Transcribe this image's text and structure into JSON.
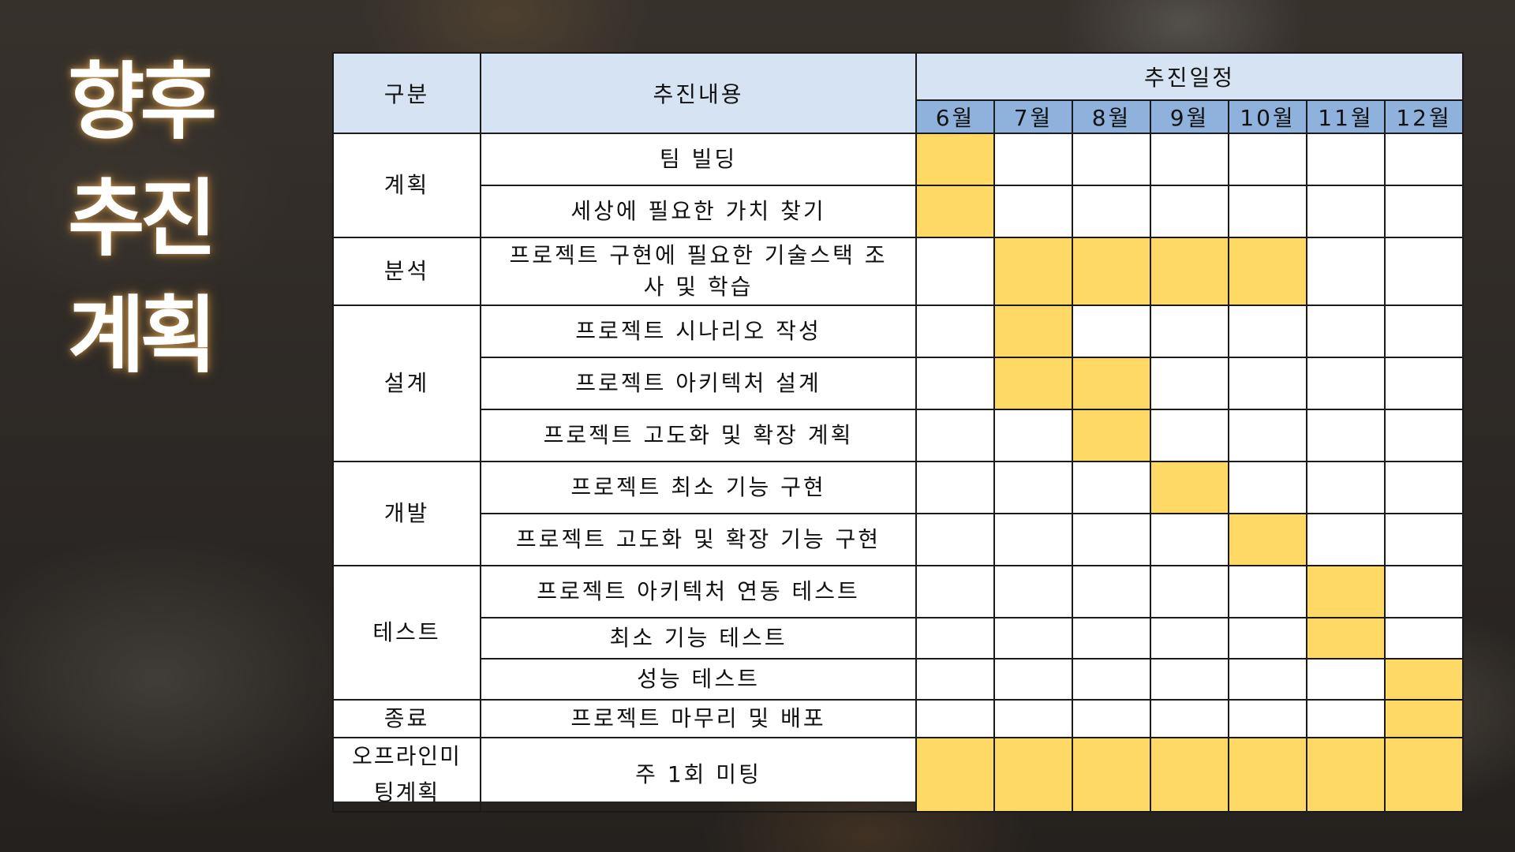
{
  "title": {
    "lines": [
      "향후",
      "추진",
      "계획"
    ]
  },
  "table": {
    "headers": {
      "category": "구분",
      "content": "추진내용",
      "schedule": "추진일정"
    },
    "months": [
      "6월",
      "7월",
      "8월",
      "9월",
      "10월",
      "11월",
      "12월"
    ],
    "groups": [
      {
        "category": "계획",
        "tasks": [
          {
            "text": "팀 빌딩",
            "active": [
              1,
              0,
              0,
              0,
              0,
              0,
              0
            ]
          },
          {
            "text": "세상에 필요한 가치 찾기",
            "active": [
              1,
              0,
              0,
              0,
              0,
              0,
              0
            ]
          }
        ]
      },
      {
        "category": "분석",
        "tasks": [
          {
            "text": "프로젝트 구현에 필요한 기술스택 조사 및 학습",
            "active": [
              0,
              1,
              1,
              1,
              1,
              0,
              0
            ]
          }
        ]
      },
      {
        "category": "설계",
        "tasks": [
          {
            "text": "프로젝트 시나리오 작성",
            "active": [
              0,
              1,
              0,
              0,
              0,
              0,
              0
            ]
          },
          {
            "text": "프로젝트 아키텍처 설계",
            "active": [
              0,
              1,
              1,
              0,
              0,
              0,
              0
            ]
          },
          {
            "text": "프로젝트 고도화 및 확장 계획",
            "active": [
              0,
              0,
              1,
              0,
              0,
              0,
              0
            ]
          }
        ]
      },
      {
        "category": "개발",
        "tasks": [
          {
            "text": "프로젝트 최소 기능 구현",
            "active": [
              0,
              0,
              0,
              1,
              0,
              0,
              0
            ]
          },
          {
            "text": "프로젝트 고도화 및 확장 기능 구현",
            "active": [
              0,
              0,
              0,
              0,
              1,
              0,
              0
            ]
          }
        ]
      },
      {
        "category": "테스트",
        "tasks": [
          {
            "text": "프로젝트 아키텍처 연동 테스트",
            "active": [
              0,
              0,
              0,
              0,
              0,
              1,
              0
            ]
          },
          {
            "text": "최소 기능 테스트",
            "active": [
              0,
              0,
              0,
              0,
              0,
              1,
              0
            ]
          },
          {
            "text": "성능 테스트",
            "active": [
              0,
              0,
              0,
              0,
              0,
              0,
              1
            ]
          }
        ]
      },
      {
        "category": "종료",
        "tasks": [
          {
            "text": "프로젝트 마무리 및 배포",
            "active": [
              0,
              0,
              0,
              0,
              0,
              0,
              1
            ]
          }
        ]
      },
      {
        "category": "오프라인미팅계획",
        "tasks": [
          {
            "text": "주 1회 미팅",
            "active": [
              1,
              1,
              1,
              1,
              1,
              1,
              1
            ]
          }
        ]
      }
    ]
  },
  "colors": {
    "active_cell": "#ffd966",
    "header_bg": "#d5e3f2",
    "month_bg": "#8fb2dc",
    "border": "#1a1a1a"
  }
}
